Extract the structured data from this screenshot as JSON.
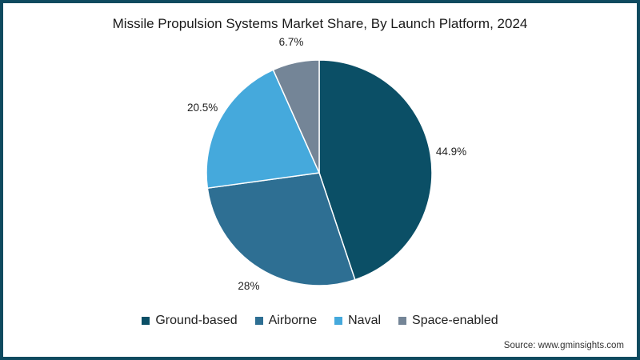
{
  "chart_data": {
    "type": "pie",
    "title": "Missile Propulsion Systems Market Share, By Launch Platform, 2024",
    "categories": [
      "Ground-based",
      "Airborne",
      "Naval",
      "Space-enabled"
    ],
    "values": [
      44.9,
      28,
      20.5,
      6.7
    ],
    "labels": [
      "44.9%",
      "28%",
      "20.5%",
      "6.7%"
    ],
    "colors": [
      "#0b4f66",
      "#2e6f93",
      "#45a9dc",
      "#748597"
    ],
    "legend_position": "bottom",
    "start_angle": "12 o'clock, clockwise"
  },
  "title": "Missile Propulsion Systems Market Share, By Launch Platform, 2024",
  "legend": [
    {
      "label": "Ground-based",
      "color": "#0b4f66"
    },
    {
      "label": "Airborne",
      "color": "#2e6f93"
    },
    {
      "label": "Naval",
      "color": "#45a9dc"
    },
    {
      "label": "Space-enabled",
      "color": "#748597"
    }
  ],
  "source": "Source: www.gminsights.com"
}
